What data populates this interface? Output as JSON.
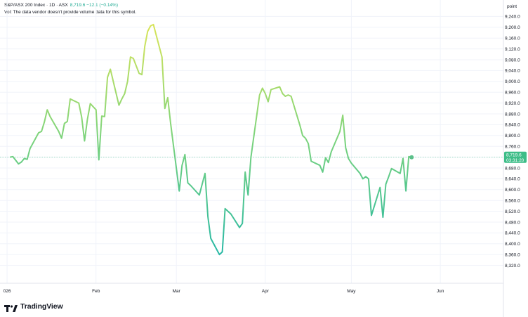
{
  "header": {
    "symbol_line": "S&P/ASX 200 Index · 1D · ASX",
    "price_line": "8,719.6  −12.1 (−0.14%)",
    "volume_note": "Vol: The data vendor doesn't provide volume data for this symbol."
  },
  "price_axis": {
    "unit_label": "point"
  },
  "last_price_tag": {
    "price": "8,719.6",
    "countdown": "03:31:20",
    "color": "#3ebd88"
  },
  "branding": {
    "name": "TradingView",
    "icon": "tradingview-logo-icon"
  },
  "colors": {
    "line_high": "#d7e45a",
    "line_mid": "#7fd47a",
    "line_low": "#1fb6a8",
    "grid": "#f0f3fa"
  },
  "chart_data": {
    "type": "line",
    "title": "S&P/ASX 200 Index · 1D · ASX",
    "xlabel": "",
    "ylabel": "point",
    "ylim": [
      8280,
      9280
    ],
    "grid": true,
    "y_ticks": [
      "8,320.0",
      "8,360.0",
      "8,400.0",
      "8,440.0",
      "8,480.0",
      "8,520.0",
      "8,560.0",
      "8,600.0",
      "8,640.0",
      "8,680.0",
      "8,720.0",
      "8,760.0",
      "8,800.0",
      "8,840.0",
      "8,880.0",
      "8,920.0",
      "8,960.0",
      "9,000.0",
      "9,040.0",
      "9,080.0",
      "9,120.0",
      "9,160.0",
      "9,200.0",
      "9,240.0"
    ],
    "x_ticks": [
      {
        "label": "026",
        "date": "2026-01-01"
      },
      {
        "label": "Feb",
        "date": "2026-02-01"
      },
      {
        "label": "Mar",
        "date": "2026-03-01"
      },
      {
        "label": "Apr",
        "date": "2026-04-01"
      },
      {
        "label": "May",
        "date": "2026-05-01"
      },
      {
        "label": "Jun",
        "date": "2026-06-01"
      }
    ],
    "x_range": [
      "2025-12-31",
      "2026-06-23"
    ],
    "series": [
      {
        "points": [
          [
            "2026-01-02",
            8720
          ],
          [
            "2026-01-03",
            8722
          ],
          [
            "2026-01-05",
            8695
          ],
          [
            "2026-01-06",
            8702
          ],
          [
            "2026-01-07",
            8715
          ],
          [
            "2026-01-08",
            8712
          ],
          [
            "2026-01-09",
            8752
          ],
          [
            "2026-01-12",
            8810
          ],
          [
            "2026-01-13",
            8815
          ],
          [
            "2026-01-14",
            8850
          ],
          [
            "2026-01-15",
            8895
          ],
          [
            "2026-01-16",
            8870
          ],
          [
            "2026-01-19",
            8815
          ],
          [
            "2026-01-20",
            8790
          ],
          [
            "2026-01-21",
            8845
          ],
          [
            "2026-01-22",
            8852
          ],
          [
            "2026-01-23",
            8935
          ],
          [
            "2026-01-26",
            8920
          ],
          [
            "2026-01-27",
            8868
          ],
          [
            "2026-01-28",
            8780
          ],
          [
            "2026-01-29",
            8860
          ],
          [
            "2026-01-30",
            8918
          ],
          [
            "2026-02-01",
            8895
          ],
          [
            "2026-02-02",
            8710
          ],
          [
            "2026-02-03",
            8872
          ],
          [
            "2026-02-04",
            8870
          ],
          [
            "2026-02-05",
            9015
          ],
          [
            "2026-02-06",
            9045
          ],
          [
            "2026-02-09",
            8912
          ],
          [
            "2026-02-10",
            8935
          ],
          [
            "2026-02-11",
            8955
          ],
          [
            "2026-02-12",
            9000
          ],
          [
            "2026-02-13",
            9090
          ],
          [
            "2026-02-14",
            9085
          ],
          [
            "2026-02-16",
            9030
          ],
          [
            "2026-02-17",
            9025
          ],
          [
            "2026-02-18",
            9130
          ],
          [
            "2026-02-19",
            9185
          ],
          [
            "2026-02-20",
            9205
          ],
          [
            "2026-02-21",
            9210
          ],
          [
            "2026-02-24",
            9090
          ],
          [
            "2026-02-25",
            8900
          ],
          [
            "2026-02-26",
            8940
          ],
          [
            "2026-02-27",
            8845
          ],
          [
            "2026-03-02",
            8595
          ],
          [
            "2026-03-03",
            8690
          ],
          [
            "2026-03-04",
            8730
          ],
          [
            "2026-03-05",
            8625
          ],
          [
            "2026-03-06",
            8615
          ],
          [
            "2026-03-09",
            8580
          ],
          [
            "2026-03-10",
            8620
          ],
          [
            "2026-03-11",
            8660
          ],
          [
            "2026-03-12",
            8500
          ],
          [
            "2026-03-13",
            8420
          ],
          [
            "2026-03-16",
            8360
          ],
          [
            "2026-03-17",
            8370
          ],
          [
            "2026-03-18",
            8530
          ],
          [
            "2026-03-19",
            8520
          ],
          [
            "2026-03-20",
            8510
          ],
          [
            "2026-03-23",
            8460
          ],
          [
            "2026-03-24",
            8475
          ],
          [
            "2026-03-25",
            8665
          ],
          [
            "2026-03-26",
            8580
          ],
          [
            "2026-03-27",
            8720
          ],
          [
            "2026-03-30",
            8950
          ],
          [
            "2026-03-31",
            8975
          ],
          [
            "2026-04-01",
            8955
          ],
          [
            "2026-04-02",
            8925
          ],
          [
            "2026-04-03",
            8970
          ],
          [
            "2026-04-06",
            8980
          ],
          [
            "2026-04-07",
            8955
          ],
          [
            "2026-04-08",
            8945
          ],
          [
            "2026-04-09",
            8950
          ],
          [
            "2026-04-10",
            8945
          ],
          [
            "2026-04-13",
            8840
          ],
          [
            "2026-04-14",
            8800
          ],
          [
            "2026-04-15",
            8790
          ],
          [
            "2026-04-16",
            8770
          ],
          [
            "2026-04-17",
            8705
          ],
          [
            "2026-04-20",
            8690
          ],
          [
            "2026-04-21",
            8665
          ],
          [
            "2026-04-22",
            8718
          ],
          [
            "2026-04-23",
            8700
          ],
          [
            "2026-04-24",
            8740
          ],
          [
            "2026-04-27",
            8815
          ],
          [
            "2026-04-28",
            8875
          ],
          [
            "2026-04-29",
            8755
          ],
          [
            "2026-04-30",
            8715
          ],
          [
            "2026-05-01",
            8698
          ],
          [
            "2026-05-04",
            8660
          ],
          [
            "2026-05-05",
            8640
          ],
          [
            "2026-05-06",
            8648
          ],
          [
            "2026-05-07",
            8640
          ],
          [
            "2026-05-08",
            8505
          ],
          [
            "2026-05-11",
            8608
          ],
          [
            "2026-05-12",
            8498
          ],
          [
            "2026-05-13",
            8620
          ],
          [
            "2026-05-14",
            8648
          ],
          [
            "2026-05-15",
            8678
          ],
          [
            "2026-05-18",
            8660
          ],
          [
            "2026-05-19",
            8715
          ],
          [
            "2026-05-20",
            8595
          ],
          [
            "2026-05-21",
            8722
          ],
          [
            "2026-05-22",
            8719.6
          ]
        ]
      }
    ]
  }
}
